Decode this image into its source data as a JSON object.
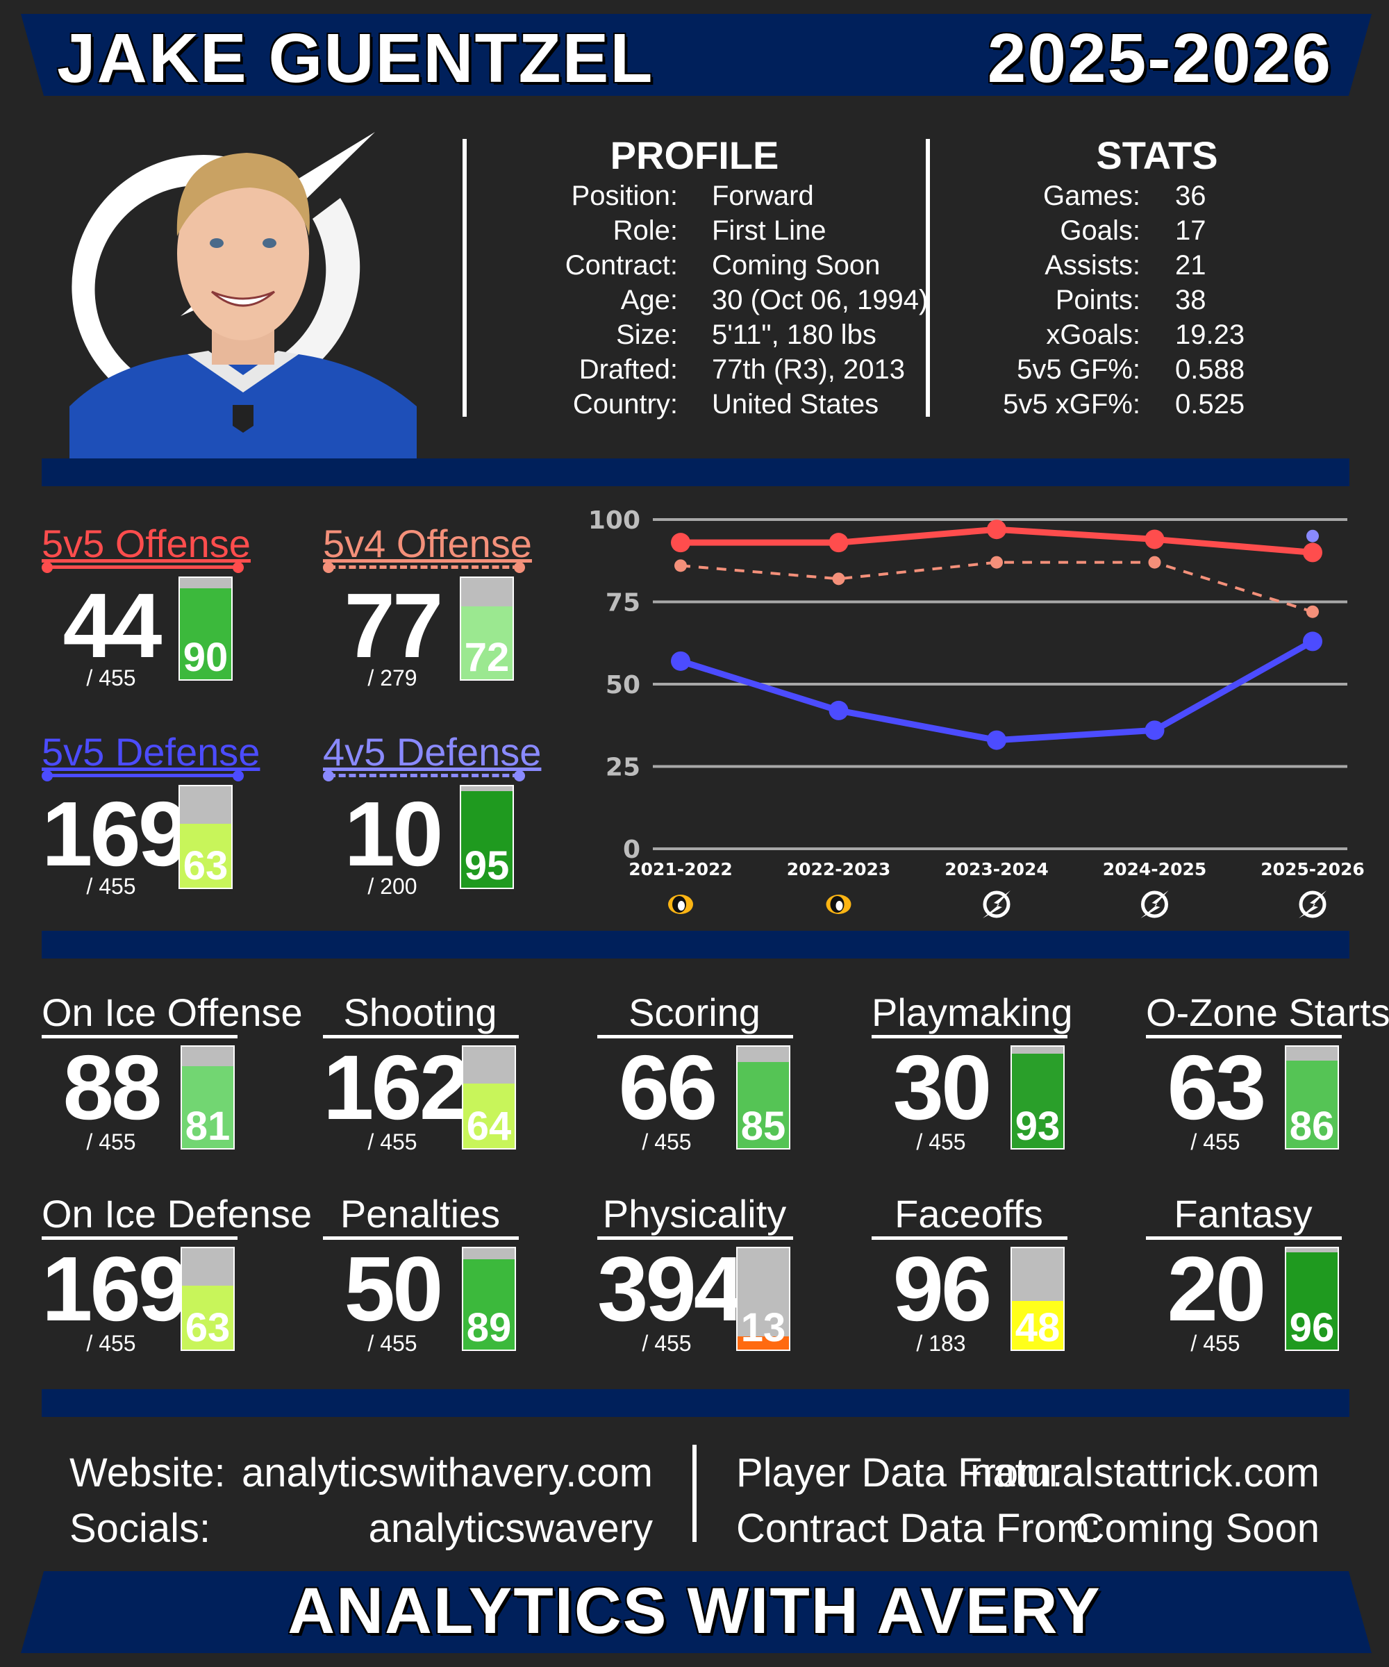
{
  "header": {
    "player_name": "JAKE GUENTZEL",
    "season": "2025-2026"
  },
  "profile": {
    "title": "PROFILE",
    "rows": [
      {
        "label": "Position:",
        "value": "Forward"
      },
      {
        "label": "Role:",
        "value": "First Line"
      },
      {
        "label": "Contract:",
        "value": "Coming Soon"
      },
      {
        "label": "Age:",
        "value": "30 (Oct 06, 1994)"
      },
      {
        "label": "Size:",
        "value": "5'11\", 180 lbs"
      },
      {
        "label": "Drafted:",
        "value": "77th (R3), 2013"
      },
      {
        "label": "Country:",
        "value": "United States"
      }
    ]
  },
  "stats": {
    "title": "STATS",
    "rows": [
      {
        "label": "Games:",
        "value": "36"
      },
      {
        "label": "Goals:",
        "value": "17"
      },
      {
        "label": "Assists:",
        "value": "21"
      },
      {
        "label": "Points:",
        "value": "38"
      },
      {
        "label": "xGoals:",
        "value": "19.23"
      },
      {
        "label": "5v5 GF%:",
        "value": "0.588"
      },
      {
        "label": "5v5 xGF%:",
        "value": "0.525"
      }
    ]
  },
  "ratings": [
    {
      "title": "5v5 Offense",
      "rank": "44",
      "total": "/ 455",
      "percentile": 90,
      "percentile_label": "90",
      "color": "#ff4d4d",
      "dashed": false,
      "fill": "#3cb93c"
    },
    {
      "title": "5v4 Offense",
      "rank": "77",
      "total": "/ 279",
      "percentile": 72,
      "percentile_label": "72",
      "color": "#f4907a",
      "dashed": true,
      "fill": "#9be890"
    },
    {
      "title": "5v5 Defense",
      "rank": "169",
      "total": "/ 455",
      "percentile": 63,
      "percentile_label": "63",
      "color": "#4c4cff",
      "dashed": false,
      "fill": "#c8f55a"
    },
    {
      "title": "4v5 Defense",
      "rank": "10",
      "total": "/ 200",
      "percentile": 95,
      "percentile_label": "95",
      "color": "#8a8aff",
      "dashed": true,
      "fill": "#1f9a1f"
    }
  ],
  "chart_data": {
    "type": "line",
    "categories": [
      "2021-2022",
      "2022-2023",
      "2023-2024",
      "2024-2025",
      "2025-2026"
    ],
    "category_team_icons": [
      "penguins-logo-icon",
      "penguins-logo-icon",
      "lightning-logo-icon",
      "lightning-logo-icon",
      "lightning-logo-icon"
    ],
    "ylim": [
      0,
      100
    ],
    "yticks": [
      "0",
      "25",
      "50",
      "75",
      "100"
    ],
    "grid": true,
    "series": [
      {
        "name": "5v5 Offense",
        "color": "#ff4d4d",
        "dash": false,
        "values": [
          93,
          93,
          97,
          94,
          90
        ]
      },
      {
        "name": "5v4 Offense",
        "color": "#f4907a",
        "dash": true,
        "values": [
          86,
          82,
          87,
          87,
          72
        ]
      },
      {
        "name": "5v5 Defense",
        "color": "#4c4cff",
        "dash": false,
        "values": [
          57,
          42,
          33,
          36,
          63
        ]
      },
      {
        "name": "4v5 Defense",
        "color": "#8a8aff",
        "dash": true,
        "values": [
          null,
          null,
          null,
          null,
          95
        ]
      }
    ]
  },
  "metrics": [
    {
      "title": "On Ice Offense",
      "rank": "88",
      "total": "/ 455",
      "percentile": 81,
      "percentile_label": "81",
      "fill": "#72d672"
    },
    {
      "title": "Shooting",
      "rank": "162",
      "total": "/ 455",
      "percentile": 64,
      "percentile_label": "64",
      "fill": "#c8f55a"
    },
    {
      "title": "Scoring",
      "rank": "66",
      "total": "/ 455",
      "percentile": 85,
      "percentile_label": "85",
      "fill": "#55c455"
    },
    {
      "title": "Playmaking",
      "rank": "30",
      "total": "/ 455",
      "percentile": 93,
      "percentile_label": "93",
      "fill": "#2a9f2a"
    },
    {
      "title": "O-Zone Starts",
      "rank": "63",
      "total": "/ 455",
      "percentile": 86,
      "percentile_label": "86",
      "fill": "#55c455"
    },
    {
      "title": "On Ice Defense",
      "rank": "169",
      "total": "/ 455",
      "percentile": 63,
      "percentile_label": "63",
      "fill": "#c8f55a"
    },
    {
      "title": "Penalties",
      "rank": "50",
      "total": "/ 455",
      "percentile": 89,
      "percentile_label": "89",
      "fill": "#3cb93c"
    },
    {
      "title": "Physicality",
      "rank": "394",
      "total": "/ 455",
      "percentile": 13,
      "percentile_label": "13",
      "fill": "#ff6a10"
    },
    {
      "title": "Faceoffs",
      "rank": "96",
      "total": "/ 183",
      "percentile": 48,
      "percentile_label": "48",
      "fill": "#ffff1a"
    },
    {
      "title": "Fantasy",
      "rank": "20",
      "total": "/ 455",
      "percentile": 96,
      "percentile_label": "96",
      "fill": "#1f9a1f"
    }
  ],
  "footer": {
    "website_label": "Website:",
    "website": "analyticswithavery.com",
    "socials_label": "Socials:",
    "socials": "analyticswavery",
    "player_data_label": "Player Data From:",
    "player_data": "naturalstattrick.com",
    "contract_data_label": "Contract Data From:",
    "contract_data": "Coming Soon",
    "brand": "ANALYTICS WITH AVERY"
  },
  "icons": {
    "team_logo": "lightning-logo-icon",
    "photo": "player-headshot"
  }
}
